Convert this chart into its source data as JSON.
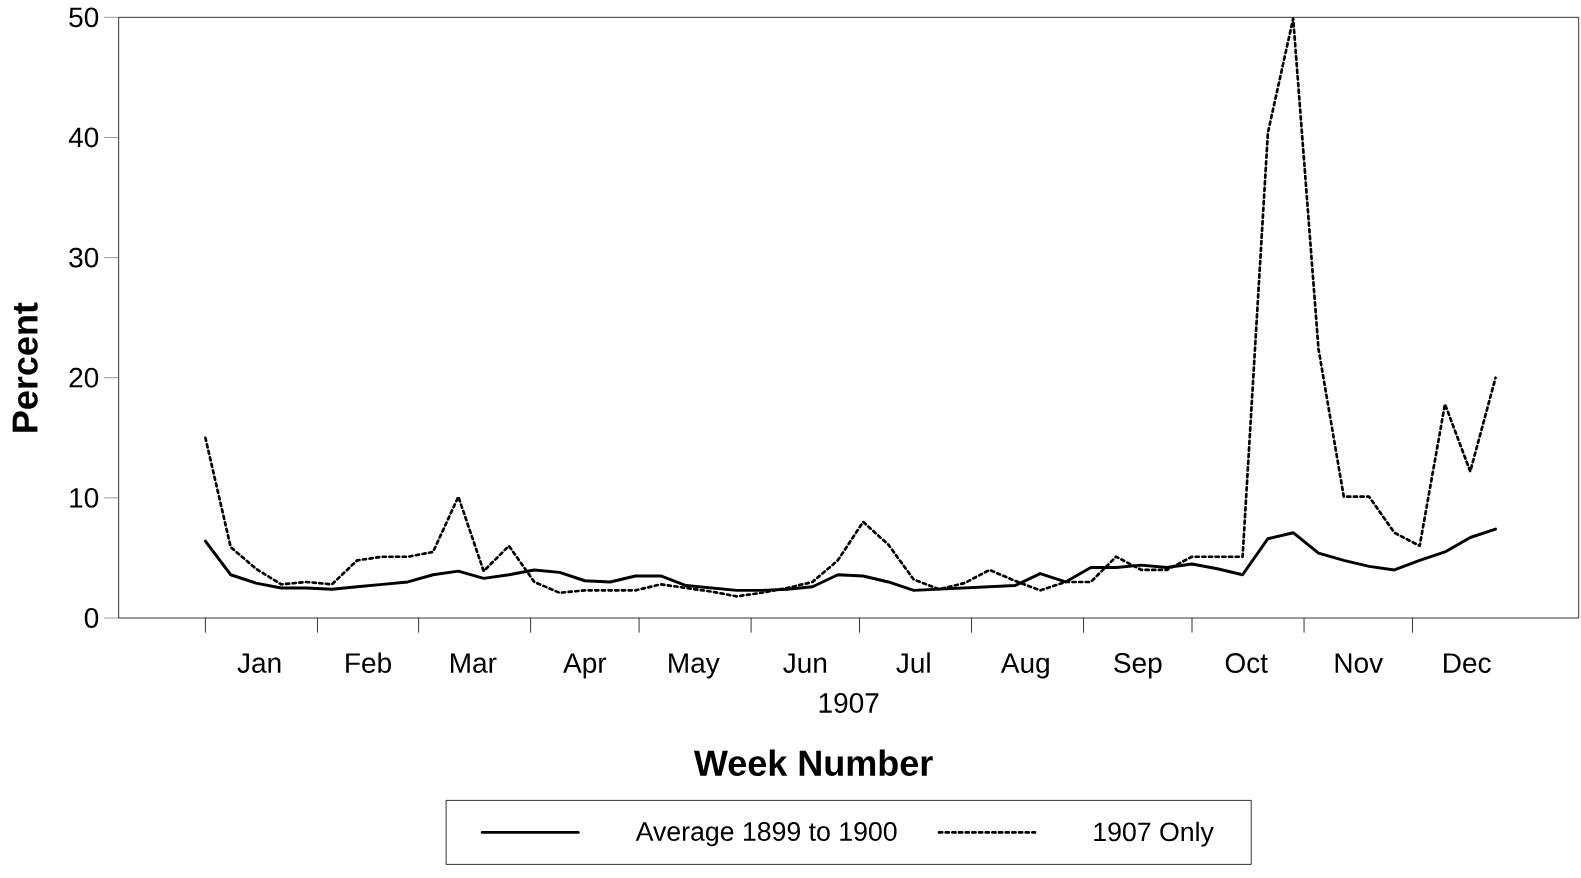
{
  "chart_data": {
    "type": "line",
    "xlabel": "Week Number",
    "ylabel": "Percent",
    "annotations": [
      "1907"
    ],
    "x": [
      "1907-01-01",
      "1907-01-08",
      "1907-01-15",
      "1907-01-22",
      "1907-01-29",
      "1907-02-05",
      "1907-02-12",
      "1907-02-19",
      "1907-02-26",
      "1907-03-05",
      "1907-03-12",
      "1907-03-19",
      "1907-03-26",
      "1907-04-02",
      "1907-04-09",
      "1907-04-16",
      "1907-04-23",
      "1907-04-30",
      "1907-05-07",
      "1907-05-14",
      "1907-05-21",
      "1907-05-28",
      "1907-06-04",
      "1907-06-11",
      "1907-06-18",
      "1907-06-25",
      "1907-07-02",
      "1907-07-09",
      "1907-07-16",
      "1907-07-23",
      "1907-07-30",
      "1907-08-06",
      "1907-08-13",
      "1907-08-20",
      "1907-08-27",
      "1907-09-03",
      "1907-09-10",
      "1907-09-17",
      "1907-09-24",
      "1907-10-01",
      "1907-10-08",
      "1907-10-15",
      "1907-10-22",
      "1907-10-29",
      "1907-11-05",
      "1907-11-12",
      "1907-11-19",
      "1907-11-26",
      "1907-12-03",
      "1907-12-10",
      "1907-12-17",
      "1907-12-24"
    ],
    "series": [
      {
        "name": "Average 1899 to 1900",
        "color": "#000000",
        "line_style": "solid",
        "values": [
          6.4,
          3.6,
          2.9,
          2.5,
          2.5,
          2.4,
          2.6,
          2.8,
          3.0,
          3.6,
          3.9,
          3.3,
          3.6,
          4.0,
          3.8,
          3.1,
          3.0,
          3.5,
          3.5,
          2.7,
          2.5,
          2.3,
          2.3,
          2.4,
          2.6,
          3.6,
          3.5,
          3.0,
          2.3,
          2.4,
          2.5,
          2.6,
          2.7,
          3.7,
          3.0,
          4.2,
          4.2,
          4.4,
          4.2,
          4.5,
          4.1,
          3.6,
          6.6,
          7.1,
          5.4,
          4.8,
          4.3,
          4.0,
          4.8,
          5.5,
          6.7,
          7.4
        ]
      },
      {
        "name": "1907 Only",
        "color": "#000000",
        "line_style": "dotted",
        "values": [
          15.0,
          5.9,
          4.1,
          2.8,
          3.0,
          2.8,
          4.8,
          5.1,
          5.1,
          5.5,
          10.1,
          3.9,
          6.0,
          3.0,
          2.1,
          2.3,
          2.3,
          2.3,
          2.8,
          2.5,
          2.2,
          1.8,
          2.1,
          2.5,
          3.0,
          4.8,
          8.0,
          6.1,
          3.2,
          2.4,
          2.9,
          4.0,
          3.1,
          2.3,
          3.0,
          3.0,
          5.1,
          4.0,
          4.0,
          5.1,
          5.1,
          5.1,
          40.4,
          49.9,
          22.4,
          10.1,
          10.1,
          7.1,
          6.0,
          17.8,
          12.2,
          20.0
        ]
      }
    ],
    "xlim": [
      "1906-12-08",
      "1908-01-16"
    ],
    "xticks": [
      {
        "value": "1907-01-01",
        "label": null
      },
      {
        "value": "1907-01-16",
        "label": "Jan"
      },
      {
        "value": "1907-02-01",
        "label": null
      },
      {
        "value": "1907-02-15",
        "label": "Feb"
      },
      {
        "value": "1907-03-01",
        "label": null
      },
      {
        "value": "1907-03-16",
        "label": "Mar"
      },
      {
        "value": "1907-04-01",
        "label": null
      },
      {
        "value": "1907-04-16",
        "label": "Apr"
      },
      {
        "value": "1907-05-01",
        "label": null
      },
      {
        "value": "1907-05-16",
        "label": "May"
      },
      {
        "value": "1907-06-01",
        "label": null
      },
      {
        "value": "1907-06-16",
        "label": "Jun"
      },
      {
        "value": "1907-07-01",
        "label": null
      },
      {
        "value": "1907-07-16",
        "label": "Jul"
      },
      {
        "value": "1907-08-01",
        "label": null
      },
      {
        "value": "1907-08-16",
        "label": "Aug"
      },
      {
        "value": "1907-09-01",
        "label": null
      },
      {
        "value": "1907-09-16",
        "label": "Sep"
      },
      {
        "value": "1907-10-01",
        "label": null
      },
      {
        "value": "1907-10-16",
        "label": "Oct"
      },
      {
        "value": "1907-11-01",
        "label": null
      },
      {
        "value": "1907-11-16",
        "label": "Nov"
      },
      {
        "value": "1907-12-01",
        "label": null
      },
      {
        "value": "1907-12-16",
        "label": "Dec"
      }
    ],
    "ylim": [
      0,
      50
    ],
    "yticks": [
      0,
      10,
      20,
      30,
      40,
      50
    ],
    "legend": "bottom",
    "marker": "none"
  }
}
